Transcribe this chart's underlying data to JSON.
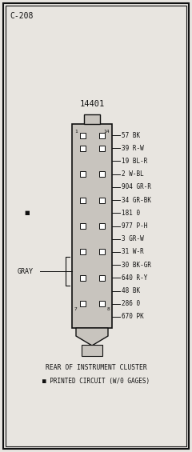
{
  "title_code": "C-208",
  "connector_label": "14401",
  "background_color": "#e8e5e0",
  "border_color": "#111111",
  "wire_labels": [
    "57 BK",
    "39 R-W",
    "19 BL-R",
    "2 W-BL",
    "904 GR-R",
    "34 GR-BK",
    "181 0",
    "977 P-H",
    "3 GR-W",
    "31 W-R",
    "30 BK-GR",
    "640 R-Y",
    "48 BK",
    "286 0",
    "670 PK"
  ],
  "has_left_pin": [
    true,
    true,
    false,
    true,
    false,
    true,
    false,
    true,
    false,
    true,
    false,
    true,
    false,
    true,
    false
  ],
  "has_right_pin": [
    true,
    true,
    false,
    true,
    false,
    true,
    false,
    true,
    false,
    true,
    false,
    true,
    false,
    true,
    false
  ],
  "gray_label": "GRAY",
  "bottom_text1": "REAR OF INSTRUMENT CLUSTER",
  "bottom_text2": "■ PRINTED CIRCUIT (W/0 GAGES)",
  "text_color": "#111111",
  "connector_fill": "#c8c4be",
  "pin_fill": "#ffffff"
}
